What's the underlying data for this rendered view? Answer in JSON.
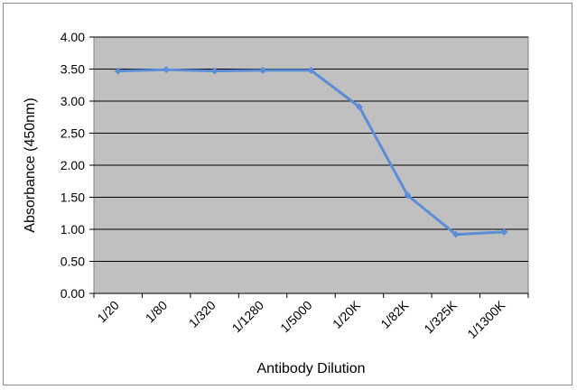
{
  "chart_data": {
    "type": "line",
    "title": "",
    "xlabel": "Antibody Dilution",
    "ylabel": "Absorbance (450nm)",
    "categories": [
      "1/20",
      "1/80",
      "1/320",
      "1/1280",
      "1/5000",
      "1/20K",
      "1/82K",
      "1/325K",
      "1/1300K"
    ],
    "series": [
      {
        "values": [
          3.47,
          3.49,
          3.47,
          3.48,
          3.48,
          2.91,
          1.53,
          0.92,
          0.96
        ]
      }
    ],
    "ylim": [
      0,
      4
    ],
    "yticks": [
      "0.00",
      "0.50",
      "1.00",
      "1.50",
      "2.00",
      "2.50",
      "3.00",
      "3.50",
      "4.00"
    ],
    "grid": true,
    "legend": "none",
    "colors": {
      "plot_background": "#c0c0c0",
      "gridline": "#000000",
      "series": "#5b8ed6"
    }
  }
}
